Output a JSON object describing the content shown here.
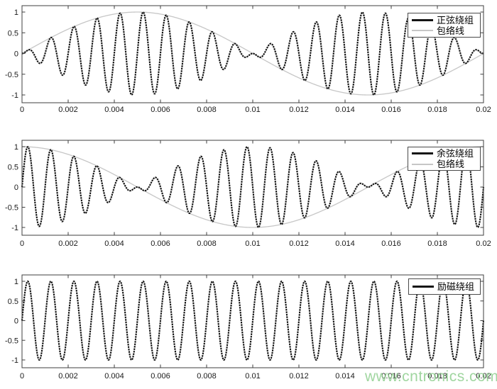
{
  "figure": {
    "background": "#ffffff"
  },
  "axis": {
    "line_color": "#3f3f3f",
    "tick_label_color": "#1a1a1a"
  },
  "watermark": {
    "text": "www.cntronics.com",
    "color": "#90cf90"
  },
  "chart_data": [
    {
      "type": "line",
      "subplot": "top",
      "title": "",
      "xlabel": "",
      "ylabel": "",
      "xlim": [
        0,
        0.02
      ],
      "ylim": [
        -1.15,
        1.15
      ],
      "grid": false,
      "x_tick_values": [
        0,
        0.002,
        0.004,
        0.006,
        0.008,
        0.01,
        0.012,
        0.014,
        0.016,
        0.018,
        0.02
      ],
      "x_tick_labels": [
        "0",
        "0.002",
        "0.004",
        "0.006",
        "0.008",
        "0.01",
        "0.012",
        "0.014",
        "0.016",
        "0.018",
        "0.02"
      ],
      "y_tick_values": [
        1,
        0.5,
        0,
        -0.5,
        -1
      ],
      "y_tick_labels": [
        "1",
        "0.5",
        "0",
        "-0.5",
        "-1"
      ],
      "legend_position": "upper-right",
      "series": [
        {
          "name": "正弦绕组",
          "role": "signal",
          "amplitude": 1,
          "carrier_hz": 1000,
          "envelope": "sin",
          "envelope_hz": 50,
          "color": "#141414"
        },
        {
          "name": "包络线",
          "role": "envelope",
          "amplitude": 1,
          "carrier_hz": null,
          "envelope": "sin",
          "envelope_hz": 50,
          "color": "#c6c6c6"
        }
      ]
    },
    {
      "type": "line",
      "subplot": "middle",
      "title": "",
      "xlabel": "",
      "ylabel": "",
      "xlim": [
        0,
        0.02
      ],
      "ylim": [
        -1.15,
        1.15
      ],
      "grid": false,
      "x_tick_values": [
        0,
        0.002,
        0.004,
        0.006,
        0.008,
        0.01,
        0.012,
        0.014,
        0.016,
        0.018,
        0.02
      ],
      "x_tick_labels": [
        "0",
        "0.002",
        "0.004",
        "0.006",
        "0.008",
        "0.01",
        "0.012",
        "0.014",
        "0.016",
        "0.018",
        "0.02"
      ],
      "y_tick_values": [
        1,
        0.5,
        0,
        -0.5,
        -1
      ],
      "y_tick_labels": [
        "1",
        "0.5",
        "0",
        "-0.5",
        "-1"
      ],
      "legend_position": "upper-right",
      "series": [
        {
          "name": "余弦绕组",
          "role": "signal",
          "amplitude": 1,
          "carrier_hz": 1000,
          "envelope": "cos",
          "envelope_hz": 50,
          "color": "#141414"
        },
        {
          "name": "包络线",
          "role": "envelope",
          "amplitude": 1,
          "carrier_hz": null,
          "envelope": "cos",
          "envelope_hz": 50,
          "color": "#c6c6c6"
        }
      ]
    },
    {
      "type": "line",
      "subplot": "bottom",
      "title": "",
      "xlabel": "",
      "ylabel": "",
      "xlim": [
        0,
        0.02
      ],
      "ylim": [
        -1.15,
        1.15
      ],
      "grid": false,
      "x_tick_values": [
        0,
        0.002,
        0.004,
        0.006,
        0.008,
        0.01,
        0.012,
        0.014,
        0.016,
        0.018,
        0.02
      ],
      "x_tick_labels": [
        "0",
        "0.002",
        "0.004",
        "0.006",
        "0.008",
        "0.01",
        "0.012",
        "0.014",
        "0.016",
        "0.018",
        "0.02"
      ],
      "y_tick_values": [
        1,
        0.5,
        0,
        -0.5,
        -1
      ],
      "y_tick_labels": [
        "1",
        "0.5",
        "0",
        "-0.5",
        "-1"
      ],
      "legend_position": "upper-right",
      "series": [
        {
          "name": "励磁绕组",
          "role": "signal",
          "amplitude": 1,
          "carrier_hz": 1000,
          "envelope": "none",
          "envelope_hz": null,
          "color": "#141414"
        }
      ]
    }
  ]
}
